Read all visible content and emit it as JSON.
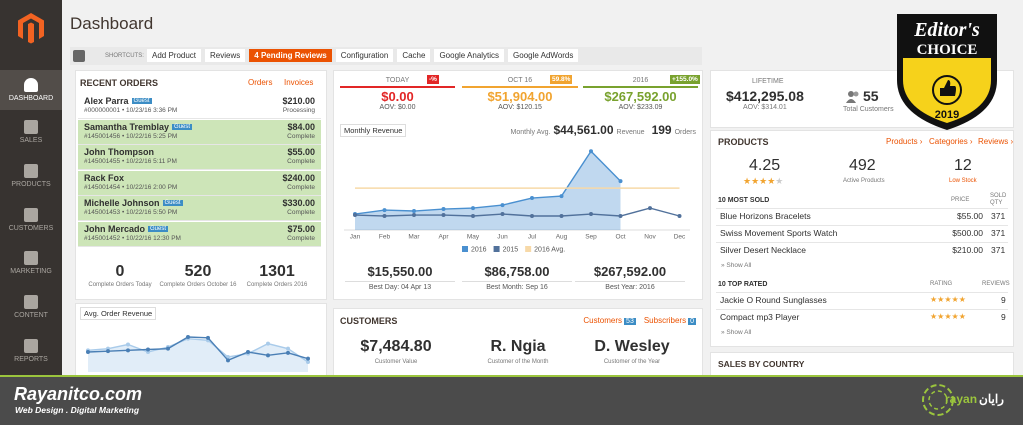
{
  "header": {
    "title": "Dashboard"
  },
  "sidebar": {
    "items": [
      "DASHBOARD",
      "SALES",
      "PRODUCTS",
      "CUSTOMERS",
      "MARKETING",
      "CONTENT",
      "REPORTS"
    ]
  },
  "shortcuts": {
    "label": "SHORTCUTS:",
    "items": [
      "Add Product",
      "Reviews",
      "4 Pending Reviews",
      "Configuration",
      "Cache",
      "Google Analytics",
      "Google AdWords"
    ]
  },
  "recent_orders": {
    "title": "RECENT ORDERS",
    "links": [
      "Orders",
      "Invoices"
    ],
    "rows": [
      {
        "name": "Alex Parra",
        "tag": "Guest",
        "meta": "#000000001 • 10/23/16 3:36 PM",
        "amount": "$210.00",
        "status": "Processing"
      },
      {
        "name": "Samantha Tremblay",
        "tag": "Guest",
        "meta": "#145001456 • 10/22/16 5:25 PM",
        "amount": "$84.00",
        "status": "Complete"
      },
      {
        "name": "John Thompson",
        "meta": "#145001455 • 10/22/16 5:11 PM",
        "amount": "$55.00",
        "status": "Complete"
      },
      {
        "name": "Rack Fox",
        "meta": "#145001454 • 10/22/16 2:00 PM",
        "amount": "$240.00",
        "status": "Complete"
      },
      {
        "name": "Michelle Johnson",
        "tag": "Guest",
        "meta": "#145001453 • 10/22/16 5:50 PM",
        "amount": "$330.00",
        "status": "Complete"
      },
      {
        "name": "John Mercado",
        "tag": "Guest",
        "meta": "#145001452 • 10/22/16 12:30 PM",
        "amount": "$75.00",
        "status": "Complete"
      }
    ],
    "stats": [
      {
        "value": 0,
        "label": "Complete Orders Today"
      },
      {
        "value": 520,
        "label": "Complete Orders October 16"
      },
      {
        "value": 1301,
        "label": "Complete Orders 2016"
      }
    ]
  },
  "avg_order_revenue": {
    "title": "Avg. Order Revenue",
    "chart": {
      "type": "line",
      "ylim": [
        0,
        300
      ],
      "series": [
        {
          "color": "#a9cbea",
          "values": [
            130,
            140,
            165,
            120,
            150,
            200,
            190,
            90,
            110,
            170,
            140,
            60
          ]
        },
        {
          "color": "#4a7fb5",
          "values": [
            120,
            125,
            130,
            135,
            140,
            210,
            205,
            70,
            120,
            100,
            115,
            80
          ]
        }
      ]
    }
  },
  "periods": [
    {
      "label": "TODAY",
      "change": "-%",
      "amount": "$0.00",
      "aov": "AOV: $0.00",
      "color": "#e22626"
    },
    {
      "label": "OCT 16",
      "change": "59.8%",
      "amount": "$51,904.00",
      "aov": "AOV: $120.15",
      "color": "#f1a430"
    },
    {
      "label": "2016",
      "change": "+155.0%",
      "amount": "$267,592.00",
      "aov": "AOV: $233.09",
      "color": "#79a22e"
    }
  ],
  "monthly_revenue": {
    "title": "Monthly Revenue",
    "avg_label": "Monthly Avg.",
    "avg": "$44,561.00",
    "avg_unit": "Revenue",
    "orders": 199,
    "orders_unit": "Orders",
    "chart": {
      "type": "line",
      "categories": [
        "Jan",
        "Feb",
        "Mar",
        "Apr",
        "May",
        "Jun",
        "Jul",
        "Aug",
        "Sep",
        "Oct",
        "Nov",
        "Dec"
      ],
      "ylim": [
        0,
        100000
      ],
      "series": [
        {
          "name": "2016",
          "color": "#4a90d0",
          "values": [
            17000,
            21200,
            20200,
            22300,
            23300,
            26500,
            34000,
            36100,
            83800,
            52000,
            null,
            null
          ]
        },
        {
          "name": "2015",
          "color": "#51719b",
          "values": [
            15900,
            14900,
            15900,
            15900,
            14900,
            17000,
            14900,
            14900,
            17000,
            14900,
            23300,
            14900
          ]
        },
        {
          "name": "2016 Avg.",
          "color": "#f7d9a8",
          "values": [
            44561,
            44561,
            44561,
            44561,
            44561,
            44561,
            44561,
            44561,
            44561,
            44561,
            44561,
            44561
          ]
        }
      ]
    },
    "bests": [
      {
        "amount": "$15,550.00",
        "label": "Best Day: 04 Apr 13"
      },
      {
        "amount": "$86,758.00",
        "label": "Best Month: Sep 16"
      },
      {
        "amount": "$267,592.00",
        "label": "Best Year: 2016"
      }
    ]
  },
  "customers": {
    "title": "CUSTOMERS",
    "links": [
      {
        "label": "Customers",
        "count": 53
      },
      {
        "label": "Subscribers",
        "count": 0
      }
    ],
    "stats": [
      {
        "value": "$7,484.80",
        "label": "Customer Value"
      },
      {
        "value": "R. Ngia",
        "label": "Customer of the Month"
      },
      {
        "value": "D. Wesley",
        "label": "Customer of the Year"
      }
    ]
  },
  "lifetime": {
    "label": "LIFETIME",
    "amount": "$412,295.08",
    "aov": "AOV: $314.01",
    "customers": 55,
    "customers_label": "Total Customers"
  },
  "products": {
    "title": "PRODUCTS",
    "links": [
      "Products ›",
      "Categories ›",
      "Reviews ›"
    ],
    "stats": [
      {
        "value": 4.25
      },
      {
        "value": 492,
        "label": "Active Products"
      },
      {
        "value": 12,
        "label": "Low Stock"
      }
    ],
    "most_sold": {
      "title": "10 MOST SOLD",
      "columns": [
        "PRICE",
        "SOLD QTY"
      ],
      "rows": [
        [
          "Blue Horizons Bracelets",
          "$55.00",
          371
        ],
        [
          "Swiss Movement Sports Watch",
          "$500.00",
          371
        ],
        [
          "Silver Desert Necklace",
          "$210.00",
          371
        ]
      ],
      "show_all": "» Show All"
    },
    "top_rated": {
      "title": "10 TOP RATED",
      "columns": [
        "RATING",
        "REVIEWS"
      ],
      "rows": [
        [
          "Jackie O Round Sunglasses",
          9
        ],
        [
          "Compact mp3 Player",
          9
        ]
      ],
      "show_all": "» Show All"
    }
  },
  "sales_by_country": {
    "title": "SALES BY COUNTRY"
  },
  "badge": {
    "line1": "Editor's",
    "line2": "CHOICE",
    "year": "2019"
  },
  "footer": {
    "site": "Rayanitco.com",
    "tagline": "Web Design . Digital Marketing",
    "logo_latin": "rayan",
    "logo_persian": "رایان"
  }
}
